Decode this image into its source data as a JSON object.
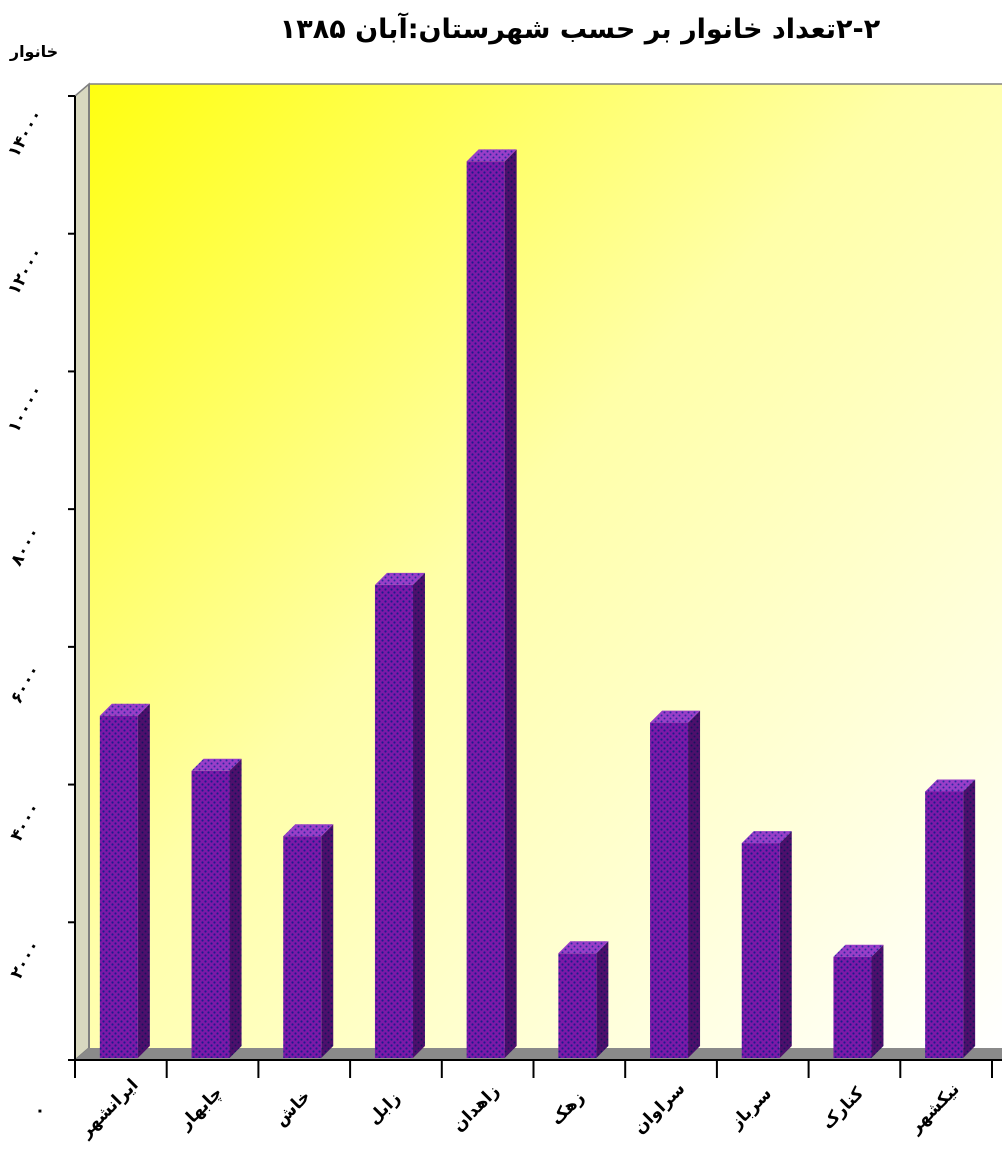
{
  "chart_data": {
    "type": "bar",
    "title": "۲-۲تعداد خانوار بر حسب شهرستان:آبان ۱۳۸۵",
    "ylabel": "خانوار",
    "xlabel": "",
    "ylim": [
      0,
      14000
    ],
    "yticks": [
      0,
      2000,
      4000,
      6000,
      8000,
      10000,
      12000,
      14000
    ],
    "ytick_labels": [
      "۰",
      "۲۰۰۰",
      "۴۰۰۰",
      "۶۰۰۰",
      "۸۰۰۰",
      "۱۰۰۰۰",
      "۱۲۰۰۰",
      "۱۴۰۰۰"
    ],
    "categories": [
      "ایرانشهر",
      "چابهار",
      "خاش",
      "زابل",
      "زاهدان",
      "زهک",
      "سراوان",
      "سرباز",
      "کنارک",
      "نیکشهر"
    ],
    "values": [
      5000,
      4200,
      3250,
      6900,
      13050,
      1550,
      4900,
      3150,
      1500,
      3900
    ],
    "grid": false,
    "legend": "none",
    "colors": {
      "bar_front": "#7a1aa6",
      "bar_dots": "#1c1c8c",
      "bar_side": "#4a0e66",
      "bar_top": "#9a3ec8",
      "background_from": "#ffff14",
      "background_to": "#ffffff",
      "floor": "#8a8a8a"
    }
  }
}
